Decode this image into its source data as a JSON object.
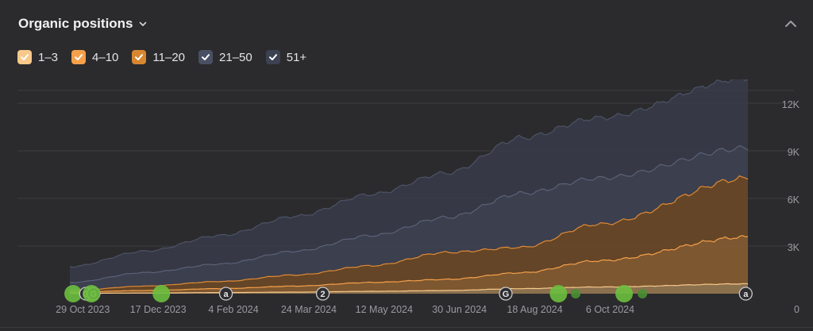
{
  "header": {
    "title": "Organic positions"
  },
  "icons": {
    "title_chevron": "chevron-down-icon",
    "collapse": "chevron-up-icon",
    "checkbox": "check-icon"
  },
  "legend": [
    {
      "label": "1–3",
      "color": "#f8c98a"
    },
    {
      "label": "4–10",
      "color": "#f5a04a"
    },
    {
      "label": "11–20",
      "color": "#d88730"
    },
    {
      "label": "21–50",
      "color": "#4a5063"
    },
    {
      "label": "51+",
      "color": "#3d4252"
    }
  ],
  "chart_data": {
    "type": "area",
    "stacked": true,
    "x_tick_labels": [
      "29 Oct 2023",
      "17 Dec 2023",
      "4 Feb 2024",
      "24 Mar 2024",
      "12 May 2024",
      "30 Jun 2024",
      "18 Aug 2024",
      "6 Oct 2024"
    ],
    "y_tick_labels": [
      "0",
      "3K",
      "6K",
      "9K",
      "12K"
    ],
    "ylim": [
      0,
      12000
    ],
    "grid": true,
    "legend_position": "top-left",
    "x_weeks": [
      0,
      7,
      14,
      21,
      28,
      35,
      42,
      49
    ],
    "series": [
      {
        "name": "1–3",
        "color": "#f8c98a",
        "values": [
          20,
          40,
          70,
          100,
          150,
          200,
          320,
          420
        ]
      },
      {
        "name": "4–10",
        "color": "#f5a04a",
        "values": [
          80,
          160,
          250,
          380,
          560,
          700,
          1000,
          1650
        ]
      },
      {
        "name": "11–20",
        "color": "#d88730",
        "values": [
          100,
          280,
          450,
          700,
          1050,
          1700,
          1600,
          2300
        ]
      },
      {
        "name": "21–50",
        "color": "#4a5063",
        "values": [
          500,
          850,
          1100,
          1500,
          1900,
          2200,
          3400,
          2900
        ]
      },
      {
        "name": "51+",
        "color": "#3d4252",
        "values": [
          1000,
          1350,
          1800,
          2200,
          2600,
          2800,
          3500,
          3800
        ]
      }
    ],
    "annotations": [
      {
        "x_week": 0.3,
        "type": "green-dot",
        "size": "large"
      },
      {
        "x_week": 1.5,
        "type": "G"
      },
      {
        "x_week": 2.2,
        "type": "G"
      },
      {
        "x_week": 2.0,
        "type": "green-dot",
        "size": "large"
      },
      {
        "x_week": 8.5,
        "type": "green-dot",
        "size": "large"
      },
      {
        "x_week": 14.5,
        "type": "a"
      },
      {
        "x_week": 23.5,
        "type": "2"
      },
      {
        "x_week": 40.5,
        "type": "G"
      },
      {
        "x_week": 45.4,
        "type": "green-dot",
        "size": "large"
      },
      {
        "x_week": 47.0,
        "type": "green-dot",
        "size": "small"
      },
      {
        "x_week": 51.5,
        "type": "green-dot",
        "size": "large"
      },
      {
        "x_week": 53.2,
        "type": "green-dot",
        "size": "small"
      },
      {
        "x_week": 62.8,
        "type": "a"
      }
    ]
  }
}
